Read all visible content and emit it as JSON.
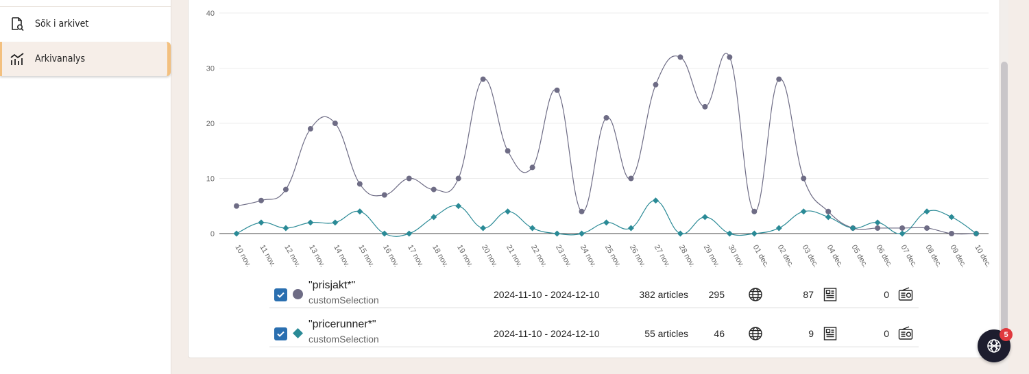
{
  "sidebar": {
    "items": [
      {
        "label": "Sök i arkivet",
        "icon": "search-document-icon"
      },
      {
        "label": "Arkivanalys",
        "icon": "analytics-chart-icon",
        "active": true
      }
    ]
  },
  "colors": {
    "series1": "#6e6c85",
    "series2": "#2a8a96",
    "checkbox": "#2a6fb0",
    "accent": "#f3c07f",
    "fab": "#1d1d2e",
    "badge": "#e0393e"
  },
  "chart_data": {
    "type": "line",
    "ylim": [
      0,
      40
    ],
    "yticks": [
      0,
      10,
      20,
      30,
      40
    ],
    "grid": true,
    "x": [
      "10 nov.",
      "11 nov.",
      "12 nov.",
      "13 nov.",
      "14 nov.",
      "15 nov.",
      "16 nov.",
      "17 nov.",
      "18 nov.",
      "19 nov.",
      "20 nov.",
      "21 nov.",
      "22 nov.",
      "23 nov.",
      "24 nov.",
      "25 nov.",
      "26 nov.",
      "27 nov.",
      "28 nov.",
      "29 nov.",
      "30 nov.",
      "01 dec.",
      "02 dec.",
      "03 dec.",
      "04 dec.",
      "05 dec.",
      "06 dec.",
      "07 dec.",
      "08 dec.",
      "09 dec.",
      "10 dec."
    ],
    "series": [
      {
        "marker": "circle",
        "values": [
          5,
          6,
          8,
          19,
          20,
          9,
          7,
          10,
          8,
          10,
          28,
          15,
          12,
          26,
          4,
          21,
          10,
          27,
          32,
          23,
          32,
          4,
          28,
          10,
          4,
          1,
          1,
          1,
          1,
          0,
          0
        ]
      },
      {
        "marker": "diamond",
        "values": [
          0,
          2,
          1,
          2,
          2,
          4,
          0,
          0,
          3,
          5,
          1,
          4,
          1,
          0,
          0,
          2,
          1,
          6,
          0,
          3,
          0,
          0,
          1,
          4,
          3,
          1,
          2,
          0,
          4,
          3,
          0
        ]
      }
    ]
  },
  "selections": [
    {
      "name": "\"prisjakt*\"",
      "type": "customSelection",
      "dates": "2024-11-10 - 2024-12-10",
      "articles": "382 articles",
      "web": "295",
      "print": "87",
      "radio": "0",
      "marker": "circle"
    },
    {
      "name": "\"pricerunner*\"",
      "type": "customSelection",
      "dates": "2024-11-10 - 2024-12-10",
      "articles": "55 articles",
      "web": "46",
      "print": "9",
      "radio": "0",
      "marker": "diamond"
    }
  ],
  "fab": {
    "icon": "globe-network-icon",
    "badge": "5"
  }
}
